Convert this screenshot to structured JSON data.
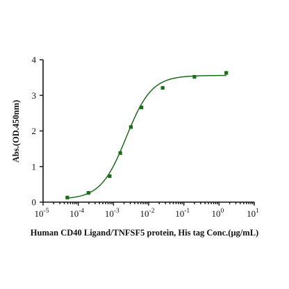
{
  "chart_data": {
    "type": "scatter",
    "title": "",
    "xlabel": "Human CD40 Ligand/TNFSF5 protein, His tag  Conc.(μg/mL)",
    "ylabel": "Abs.(OD.450nm)",
    "x_scale": "log",
    "xlim": [
      1e-05,
      10
    ],
    "ylim": [
      0,
      4
    ],
    "x_ticks": [
      {
        "base": "10",
        "exp": "-5"
      },
      {
        "base": "10",
        "exp": "-4"
      },
      {
        "base": "10",
        "exp": "-3"
      },
      {
        "base": "10",
        "exp": "-2"
      },
      {
        "base": "10",
        "exp": "-1"
      },
      {
        "base": "10",
        "exp": "0"
      },
      {
        "base": "10",
        "exp": "1"
      }
    ],
    "y_ticks": [
      "0",
      "1",
      "2",
      "3",
      "4"
    ],
    "grid": false,
    "legend": "none",
    "colors": {
      "points": "#1a6b1a",
      "curve": "#1a6b1a",
      "axes": "#111111"
    },
    "series": [
      {
        "points": [
          {
            "x": 4.88e-05,
            "y": 0.13
          },
          {
            "x": 0.000195,
            "y": 0.26
          },
          {
            "x": 0.00078,
            "y": 0.73
          },
          {
            "x": 0.00156,
            "y": 1.38
          },
          {
            "x": 0.003125,
            "y": 2.11
          },
          {
            "x": 0.00625,
            "y": 2.66
          },
          {
            "x": 0.025,
            "y": 3.21
          },
          {
            "x": 0.2,
            "y": 3.52
          },
          {
            "x": 1.6,
            "y": 3.63
          }
        ],
        "fit": {
          "model": "4PL",
          "bottom": 0.08,
          "top": 3.56,
          "ec50": 0.0023,
          "hill": 1.2
        }
      }
    ]
  }
}
